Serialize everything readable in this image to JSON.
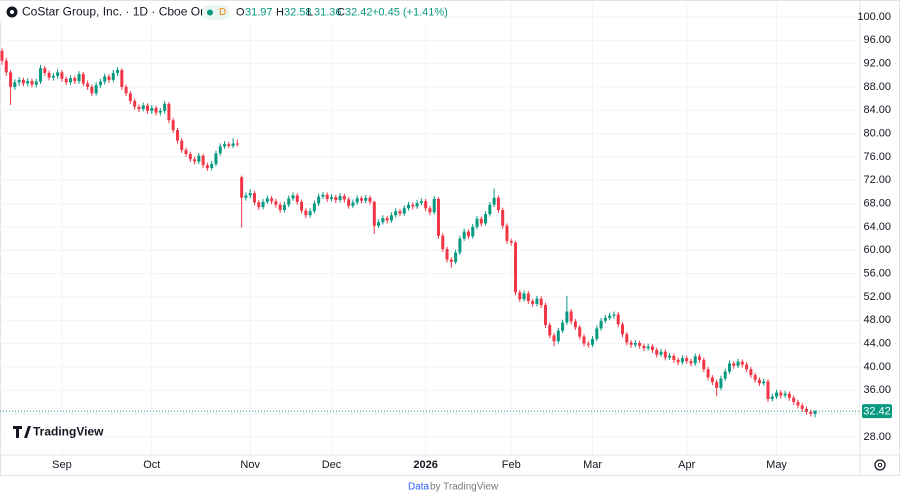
{
  "header": {
    "symbol": "CoStar Group, Inc. · 1D · Cboe One",
    "badge": "D",
    "o": "O",
    "h": "H",
    "l": "L",
    "c": "C",
    "change": "+0.45 (+1.41%)"
  },
  "logo": "TradingView",
  "footer": {
    "link": "Data",
    "rest": "by TradingView"
  },
  "chart_data": {
    "type": "candlestick",
    "up_color": "#089981",
    "down_color": "#f23645",
    "grid": true,
    "xlim": [
      -0.47,
      200.5
    ],
    "ylim": [
      24.9,
      102.9
    ],
    "xticks": [
      {
        "value": 14,
        "label": "Sep"
      },
      {
        "value": 35,
        "label": "Oct"
      },
      {
        "value": 58,
        "label": "Nov"
      },
      {
        "value": 77,
        "label": "Dec"
      },
      {
        "value": 99,
        "label": "2026"
      },
      {
        "value": 119,
        "label": "Feb"
      },
      {
        "value": 138,
        "label": "Mar"
      },
      {
        "value": 160,
        "label": "Apr"
      },
      {
        "value": 181,
        "label": "May"
      }
    ],
    "yticks": [
      {
        "value": 28,
        "label": "28.00"
      },
      {
        "value": 32,
        "label": "32.00"
      },
      {
        "value": 36,
        "label": "36.00"
      },
      {
        "value": 40,
        "label": "40.00"
      },
      {
        "value": 44,
        "label": "44.00"
      },
      {
        "value": 48,
        "label": "48.00"
      },
      {
        "value": 52,
        "label": "52.00"
      },
      {
        "value": 56,
        "label": "56.00"
      },
      {
        "value": 60,
        "label": "60.00"
      },
      {
        "value": 64,
        "label": "64.00"
      },
      {
        "value": 68,
        "label": "68.00"
      },
      {
        "value": 72,
        "label": "72.00"
      },
      {
        "value": 76,
        "label": "76.00"
      },
      {
        "value": 80,
        "label": "80.00"
      },
      {
        "value": 84,
        "label": "84.00"
      },
      {
        "value": 88,
        "label": "88.00"
      },
      {
        "value": 92,
        "label": "92.00"
      },
      {
        "value": 96,
        "label": "96.00"
      },
      {
        "value": 100,
        "label": "100.00"
      }
    ],
    "ohlc": [
      [
        94.2,
        94.6,
        91.8,
        92.5
      ],
      [
        92.5,
        93.0,
        89.9,
        90.5
      ],
      [
        90.5,
        90.9,
        84.9,
        88.0
      ],
      [
        88.0,
        89.3,
        87.5,
        88.8
      ],
      [
        88.8,
        89.7,
        88.2,
        89.2
      ],
      [
        89.2,
        89.6,
        88.1,
        88.6
      ],
      [
        88.6,
        89.5,
        88.1,
        89.0
      ],
      [
        89.0,
        89.4,
        87.9,
        88.4
      ],
      [
        88.4,
        89.4,
        87.9,
        88.9
      ],
      [
        88.9,
        91.8,
        88.5,
        91.2
      ],
      [
        91.2,
        91.6,
        89.9,
        90.4
      ],
      [
        90.4,
        90.8,
        89.1,
        89.6
      ],
      [
        89.6,
        90.4,
        89.1,
        89.9
      ],
      [
        89.9,
        91.0,
        89.4,
        90.5
      ],
      [
        90.5,
        90.9,
        88.9,
        89.4
      ],
      [
        89.4,
        89.8,
        88.3,
        88.8
      ],
      [
        88.8,
        90.0,
        88.3,
        89.5
      ],
      [
        89.5,
        89.9,
        88.5,
        89.0
      ],
      [
        89.0,
        90.7,
        88.5,
        90.2
      ],
      [
        90.2,
        90.6,
        88.1,
        88.6
      ],
      [
        88.6,
        89.1,
        87.5,
        88.0
      ],
      [
        88.0,
        88.4,
        86.4,
        86.9
      ],
      [
        86.9,
        88.8,
        86.5,
        88.3
      ],
      [
        88.3,
        89.4,
        87.8,
        88.9
      ],
      [
        88.9,
        90.3,
        88.4,
        89.8
      ],
      [
        89.8,
        90.2,
        88.7,
        89.2
      ],
      [
        89.2,
        90.9,
        88.8,
        90.4
      ],
      [
        90.4,
        91.4,
        89.9,
        90.9
      ],
      [
        90.9,
        91.2,
        87.5,
        88.0
      ],
      [
        88.0,
        88.4,
        86.4,
        86.9
      ],
      [
        86.9,
        87.3,
        85.1,
        85.6
      ],
      [
        85.6,
        86.0,
        84.1,
        84.6
      ],
      [
        84.6,
        85.0,
        83.7,
        84.2
      ],
      [
        84.2,
        85.3,
        83.8,
        84.8
      ],
      [
        84.8,
        85.2,
        83.4,
        83.9
      ],
      [
        83.9,
        84.9,
        83.4,
        84.4
      ],
      [
        84.4,
        84.8,
        83.1,
        83.6
      ],
      [
        83.6,
        84.4,
        83.1,
        83.9
      ],
      [
        83.9,
        85.6,
        83.4,
        85.1
      ],
      [
        85.1,
        85.4,
        81.8,
        82.3
      ],
      [
        82.3,
        82.7,
        80.1,
        80.6
      ],
      [
        80.6,
        81.0,
        78.3,
        78.8
      ],
      [
        78.8,
        79.2,
        76.7,
        77.2
      ],
      [
        77.2,
        77.6,
        76.0,
        76.5
      ],
      [
        76.5,
        76.9,
        75.1,
        75.6
      ],
      [
        75.6,
        76.0,
        74.7,
        75.2
      ],
      [
        75.2,
        76.7,
        74.8,
        76.2
      ],
      [
        76.2,
        76.5,
        74.1,
        74.6
      ],
      [
        74.6,
        75.0,
        73.6,
        74.1
      ],
      [
        74.1,
        75.3,
        73.7,
        74.8
      ],
      [
        74.8,
        77.1,
        74.4,
        76.6
      ],
      [
        76.6,
        78.3,
        76.2,
        77.8
      ],
      [
        77.8,
        78.7,
        77.4,
        78.2
      ],
      [
        78.2,
        78.6,
        77.5,
        77.9
      ],
      [
        77.9,
        79.2,
        77.5,
        78.3
      ],
      [
        78.3,
        79.0,
        77.8,
        78.2
      ],
      [
        72.5,
        72.8,
        63.9,
        69.0
      ],
      [
        69.0,
        69.9,
        68.5,
        69.4
      ],
      [
        69.4,
        70.5,
        68.9,
        69.8
      ],
      [
        69.8,
        70.2,
        67.7,
        68.2
      ],
      [
        68.2,
        68.6,
        66.9,
        67.4
      ],
      [
        67.4,
        68.8,
        67.0,
        68.3
      ],
      [
        68.3,
        69.4,
        67.9,
        68.9
      ],
      [
        68.9,
        69.3,
        67.9,
        68.4
      ],
      [
        68.4,
        68.8,
        67.3,
        67.8
      ],
      [
        67.8,
        68.2,
        66.4,
        66.9
      ],
      [
        66.9,
        68.3,
        66.5,
        67.8
      ],
      [
        67.8,
        69.4,
        67.4,
        68.9
      ],
      [
        68.9,
        69.9,
        68.5,
        69.4
      ],
      [
        69.4,
        69.8,
        67.8,
        68.3
      ],
      [
        68.3,
        68.7,
        66.3,
        66.8
      ],
      [
        66.8,
        67.2,
        65.5,
        66.0
      ],
      [
        66.0,
        67.2,
        65.6,
        66.7
      ],
      [
        66.7,
        68.5,
        66.3,
        68.0
      ],
      [
        68.0,
        69.7,
        67.6,
        69.2
      ],
      [
        69.2,
        70.0,
        68.8,
        69.5
      ],
      [
        69.5,
        69.9,
        68.3,
        68.8
      ],
      [
        68.8,
        69.6,
        68.4,
        69.1
      ],
      [
        69.1,
        69.5,
        68.1,
        68.6
      ],
      [
        68.6,
        69.8,
        68.2,
        69.3
      ],
      [
        69.3,
        69.7,
        68.2,
        68.7
      ],
      [
        68.7,
        69.1,
        67.1,
        67.6
      ],
      [
        67.6,
        68.7,
        67.2,
        68.2
      ],
      [
        68.2,
        69.4,
        67.8,
        68.9
      ],
      [
        68.9,
        69.3,
        68.0,
        68.5
      ],
      [
        68.5,
        69.5,
        68.1,
        69.0
      ],
      [
        69.0,
        69.4,
        67.8,
        68.3
      ],
      [
        68.3,
        68.5,
        62.8,
        64.2
      ],
      [
        64.2,
        65.3,
        63.8,
        64.8
      ],
      [
        64.8,
        66.0,
        64.4,
        65.5
      ],
      [
        65.5,
        65.9,
        64.6,
        65.1
      ],
      [
        65.1,
        66.5,
        64.7,
        66.0
      ],
      [
        66.0,
        67.2,
        65.6,
        66.7
      ],
      [
        66.7,
        67.1,
        65.8,
        66.3
      ],
      [
        66.3,
        67.7,
        65.9,
        67.2
      ],
      [
        67.2,
        68.3,
        66.8,
        67.8
      ],
      [
        67.8,
        68.2,
        67.0,
        67.5
      ],
      [
        67.5,
        68.6,
        67.1,
        68.1
      ],
      [
        68.1,
        68.9,
        67.7,
        68.4
      ],
      [
        68.4,
        68.8,
        66.7,
        67.2
      ],
      [
        67.2,
        67.6,
        66.0,
        66.5
      ],
      [
        66.5,
        69.3,
        66.1,
        68.8
      ],
      [
        68.8,
        69.1,
        62.0,
        62.5
      ],
      [
        62.5,
        62.9,
        59.7,
        60.2
      ],
      [
        60.2,
        60.6,
        57.9,
        58.4
      ],
      [
        58.4,
        58.8,
        57.0,
        58.0
      ],
      [
        58.0,
        60.1,
        57.6,
        59.6
      ],
      [
        59.6,
        62.5,
        59.2,
        62.0
      ],
      [
        62.0,
        63.7,
        61.6,
        63.2
      ],
      [
        63.2,
        63.6,
        61.9,
        62.4
      ],
      [
        62.4,
        64.5,
        62.0,
        64.0
      ],
      [
        64.0,
        65.9,
        63.6,
        65.4
      ],
      [
        65.4,
        65.8,
        64.1,
        64.6
      ],
      [
        64.6,
        66.7,
        64.2,
        66.2
      ],
      [
        66.2,
        68.3,
        65.8,
        67.8
      ],
      [
        67.8,
        70.6,
        67.4,
        69.0
      ],
      [
        69.0,
        69.4,
        66.4,
        66.9
      ],
      [
        66.9,
        67.3,
        63.7,
        64.2
      ],
      [
        64.2,
        64.6,
        61.1,
        61.6
      ],
      [
        61.6,
        62.0,
        60.8,
        61.3
      ],
      [
        61.3,
        61.6,
        52.3,
        52.8
      ],
      [
        52.8,
        53.2,
        51.1,
        51.6
      ],
      [
        51.6,
        53.1,
        51.2,
        52.6
      ],
      [
        52.6,
        53.0,
        50.8,
        51.3
      ],
      [
        51.3,
        51.7,
        50.3,
        50.8
      ],
      [
        50.8,
        52.2,
        50.4,
        51.7
      ],
      [
        51.7,
        52.1,
        50.1,
        50.6
      ],
      [
        50.6,
        51.0,
        46.7,
        47.2
      ],
      [
        47.2,
        47.6,
        44.9,
        45.4
      ],
      [
        45.4,
        45.8,
        43.5,
        44.4
      ],
      [
        44.4,
        46.7,
        44.0,
        46.2
      ],
      [
        46.2,
        48.1,
        45.8,
        47.6
      ],
      [
        47.6,
        52.2,
        47.2,
        49.5
      ],
      [
        49.5,
        49.9,
        47.3,
        47.8
      ],
      [
        47.8,
        48.2,
        46.3,
        46.8
      ],
      [
        46.8,
        47.2,
        44.7,
        45.2
      ],
      [
        45.2,
        45.6,
        43.5,
        44.0
      ],
      [
        44.0,
        44.4,
        43.3,
        43.8
      ],
      [
        43.8,
        45.3,
        43.4,
        44.8
      ],
      [
        44.8,
        47.1,
        44.4,
        46.6
      ],
      [
        46.6,
        48.4,
        46.2,
        47.9
      ],
      [
        47.9,
        48.9,
        47.5,
        48.4
      ],
      [
        48.4,
        49.3,
        48.0,
        48.8
      ],
      [
        48.8,
        49.5,
        48.3,
        49.0
      ],
      [
        49.0,
        49.4,
        46.8,
        47.3
      ],
      [
        47.3,
        47.7,
        45.1,
        45.6
      ],
      [
        45.6,
        46.0,
        43.7,
        44.2
      ],
      [
        44.2,
        44.6,
        43.3,
        43.8
      ],
      [
        43.8,
        44.6,
        43.4,
        44.1
      ],
      [
        44.1,
        44.5,
        43.1,
        43.6
      ],
      [
        43.6,
        44.0,
        42.7,
        43.2
      ],
      [
        43.2,
        44.0,
        42.8,
        43.5
      ],
      [
        43.5,
        43.9,
        42.4,
        42.9
      ],
      [
        42.9,
        43.3,
        41.6,
        42.1
      ],
      [
        42.1,
        43.1,
        41.7,
        42.6
      ],
      [
        42.6,
        43.0,
        41.1,
        41.6
      ],
      [
        41.6,
        42.4,
        41.2,
        41.9
      ],
      [
        41.9,
        42.3,
        40.7,
        41.2
      ],
      [
        41.2,
        41.6,
        40.3,
        40.8
      ],
      [
        40.8,
        42.0,
        40.4,
        41.5
      ],
      [
        41.5,
        41.9,
        40.5,
        41.0
      ],
      [
        41.0,
        41.4,
        40.1,
        40.6
      ],
      [
        40.6,
        42.3,
        40.2,
        41.8
      ],
      [
        41.8,
        42.2,
        40.7,
        41.2
      ],
      [
        41.2,
        41.6,
        39.1,
        39.6
      ],
      [
        39.6,
        40.0,
        37.7,
        38.2
      ],
      [
        38.2,
        38.6,
        36.9,
        37.4
      ],
      [
        37.4,
        37.8,
        35.0,
        36.4
      ],
      [
        36.4,
        38.5,
        36.0,
        38.0
      ],
      [
        38.0,
        39.7,
        37.6,
        39.2
      ],
      [
        39.2,
        41.1,
        38.8,
        40.6
      ],
      [
        40.6,
        41.0,
        39.7,
        40.2
      ],
      [
        40.2,
        41.4,
        39.8,
        40.9
      ],
      [
        40.9,
        41.3,
        39.9,
        40.4
      ],
      [
        40.4,
        40.8,
        39.1,
        39.6
      ],
      [
        39.6,
        40.0,
        38.1,
        38.6
      ],
      [
        38.6,
        39.0,
        37.3,
        37.8
      ],
      [
        37.8,
        38.2,
        36.7,
        37.2
      ],
      [
        37.2,
        38.0,
        36.8,
        37.5
      ],
      [
        37.5,
        37.9,
        34.0,
        34.5
      ],
      [
        34.5,
        35.4,
        34.1,
        34.9
      ],
      [
        34.9,
        36.1,
        34.5,
        35.6
      ],
      [
        35.6,
        36.0,
        34.6,
        35.1
      ],
      [
        35.1,
        35.9,
        34.7,
        35.4
      ],
      [
        35.4,
        35.8,
        34.2,
        34.7
      ],
      [
        34.7,
        35.1,
        33.5,
        34.0
      ],
      [
        34.0,
        34.4,
        32.9,
        33.4
      ],
      [
        33.4,
        33.8,
        32.3,
        32.8
      ],
      [
        32.8,
        33.2,
        31.8,
        32.3
      ],
      [
        32.3,
        32.7,
        31.5,
        31.97
      ],
      [
        31.97,
        32.58,
        31.36,
        32.42
      ]
    ]
  }
}
